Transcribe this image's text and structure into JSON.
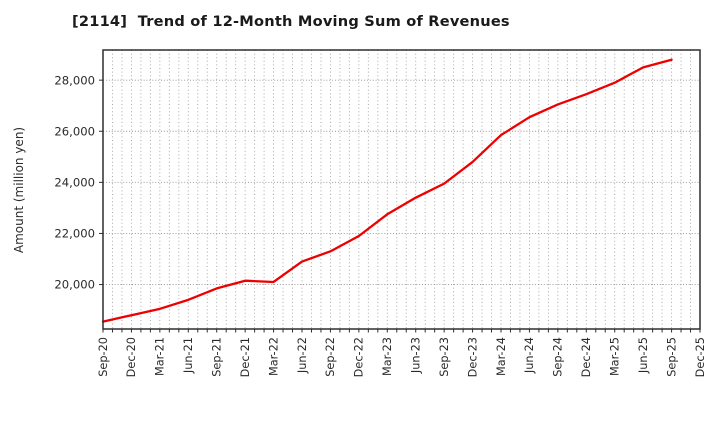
{
  "header": {
    "title": "[2114]  Trend of 12-Month Moving Sum of Revenues"
  },
  "chart_data": {
    "type": "line",
    "title": "[2114]  Trend of 12-Month Moving Sum of Revenues",
    "xlabel": "",
    "ylabel": "Amount (million yen)",
    "legend_position": "none",
    "grid": "dotted gray, vertical monthly lines and horizontal lines at y ticks",
    "x_tick_labels": [
      "Sep-20",
      "Dec-20",
      "Mar-21",
      "Jun-21",
      "Sep-21",
      "Dec-21",
      "Mar-22",
      "Jun-22",
      "Sep-22",
      "Dec-22",
      "Mar-23",
      "Jun-23",
      "Sep-23",
      "Dec-23",
      "Mar-24",
      "Jun-24",
      "Sep-24",
      "Dec-24",
      "Mar-25",
      "Jun-25",
      "Sep-25",
      "Dec-25"
    ],
    "x_months_total": 63,
    "x_tick_month_step": 3,
    "y_ticks": [
      20000,
      22000,
      24000,
      26000,
      28000
    ],
    "y_tick_labels": [
      "20,000",
      "22,000",
      "24,000",
      "26,000",
      "28,000"
    ],
    "ylim": [
      18260,
      29180
    ],
    "series": [
      {
        "name": "12-Month Moving Sum of Revenues",
        "color": "#ee0000",
        "x_labels": [
          "Sep-20",
          "Dec-20",
          "Mar-21",
          "Jun-21",
          "Sep-21",
          "Dec-21",
          "Mar-22",
          "Jun-22",
          "Sep-22",
          "Dec-22",
          "Mar-23",
          "Jun-23",
          "Sep-23",
          "Dec-23",
          "Mar-24",
          "Jun-24",
          "Sep-24",
          "Dec-24",
          "Mar-25",
          "Jun-25",
          "Sep-25"
        ],
        "x_month_index": [
          0,
          3,
          6,
          9,
          12,
          15,
          18,
          21,
          24,
          27,
          30,
          33,
          36,
          39,
          42,
          45,
          48,
          51,
          54,
          57,
          60
        ],
        "values": [
          18550,
          18800,
          19050,
          19400,
          19850,
          20150,
          20100,
          20900,
          21300,
          21900,
          22750,
          23400,
          23950,
          24800,
          25850,
          26550,
          27050,
          27450,
          27900,
          28500,
          28800
        ]
      }
    ],
    "colors": {
      "line": "#ee0000",
      "plot_border": "#2e2e2e",
      "h_grid": "#8f8f8f",
      "v_grid": "#a0a0a0",
      "tick_label": "#2b2b2b",
      "title": "#1a1a1a",
      "background": "#ffffff"
    }
  }
}
